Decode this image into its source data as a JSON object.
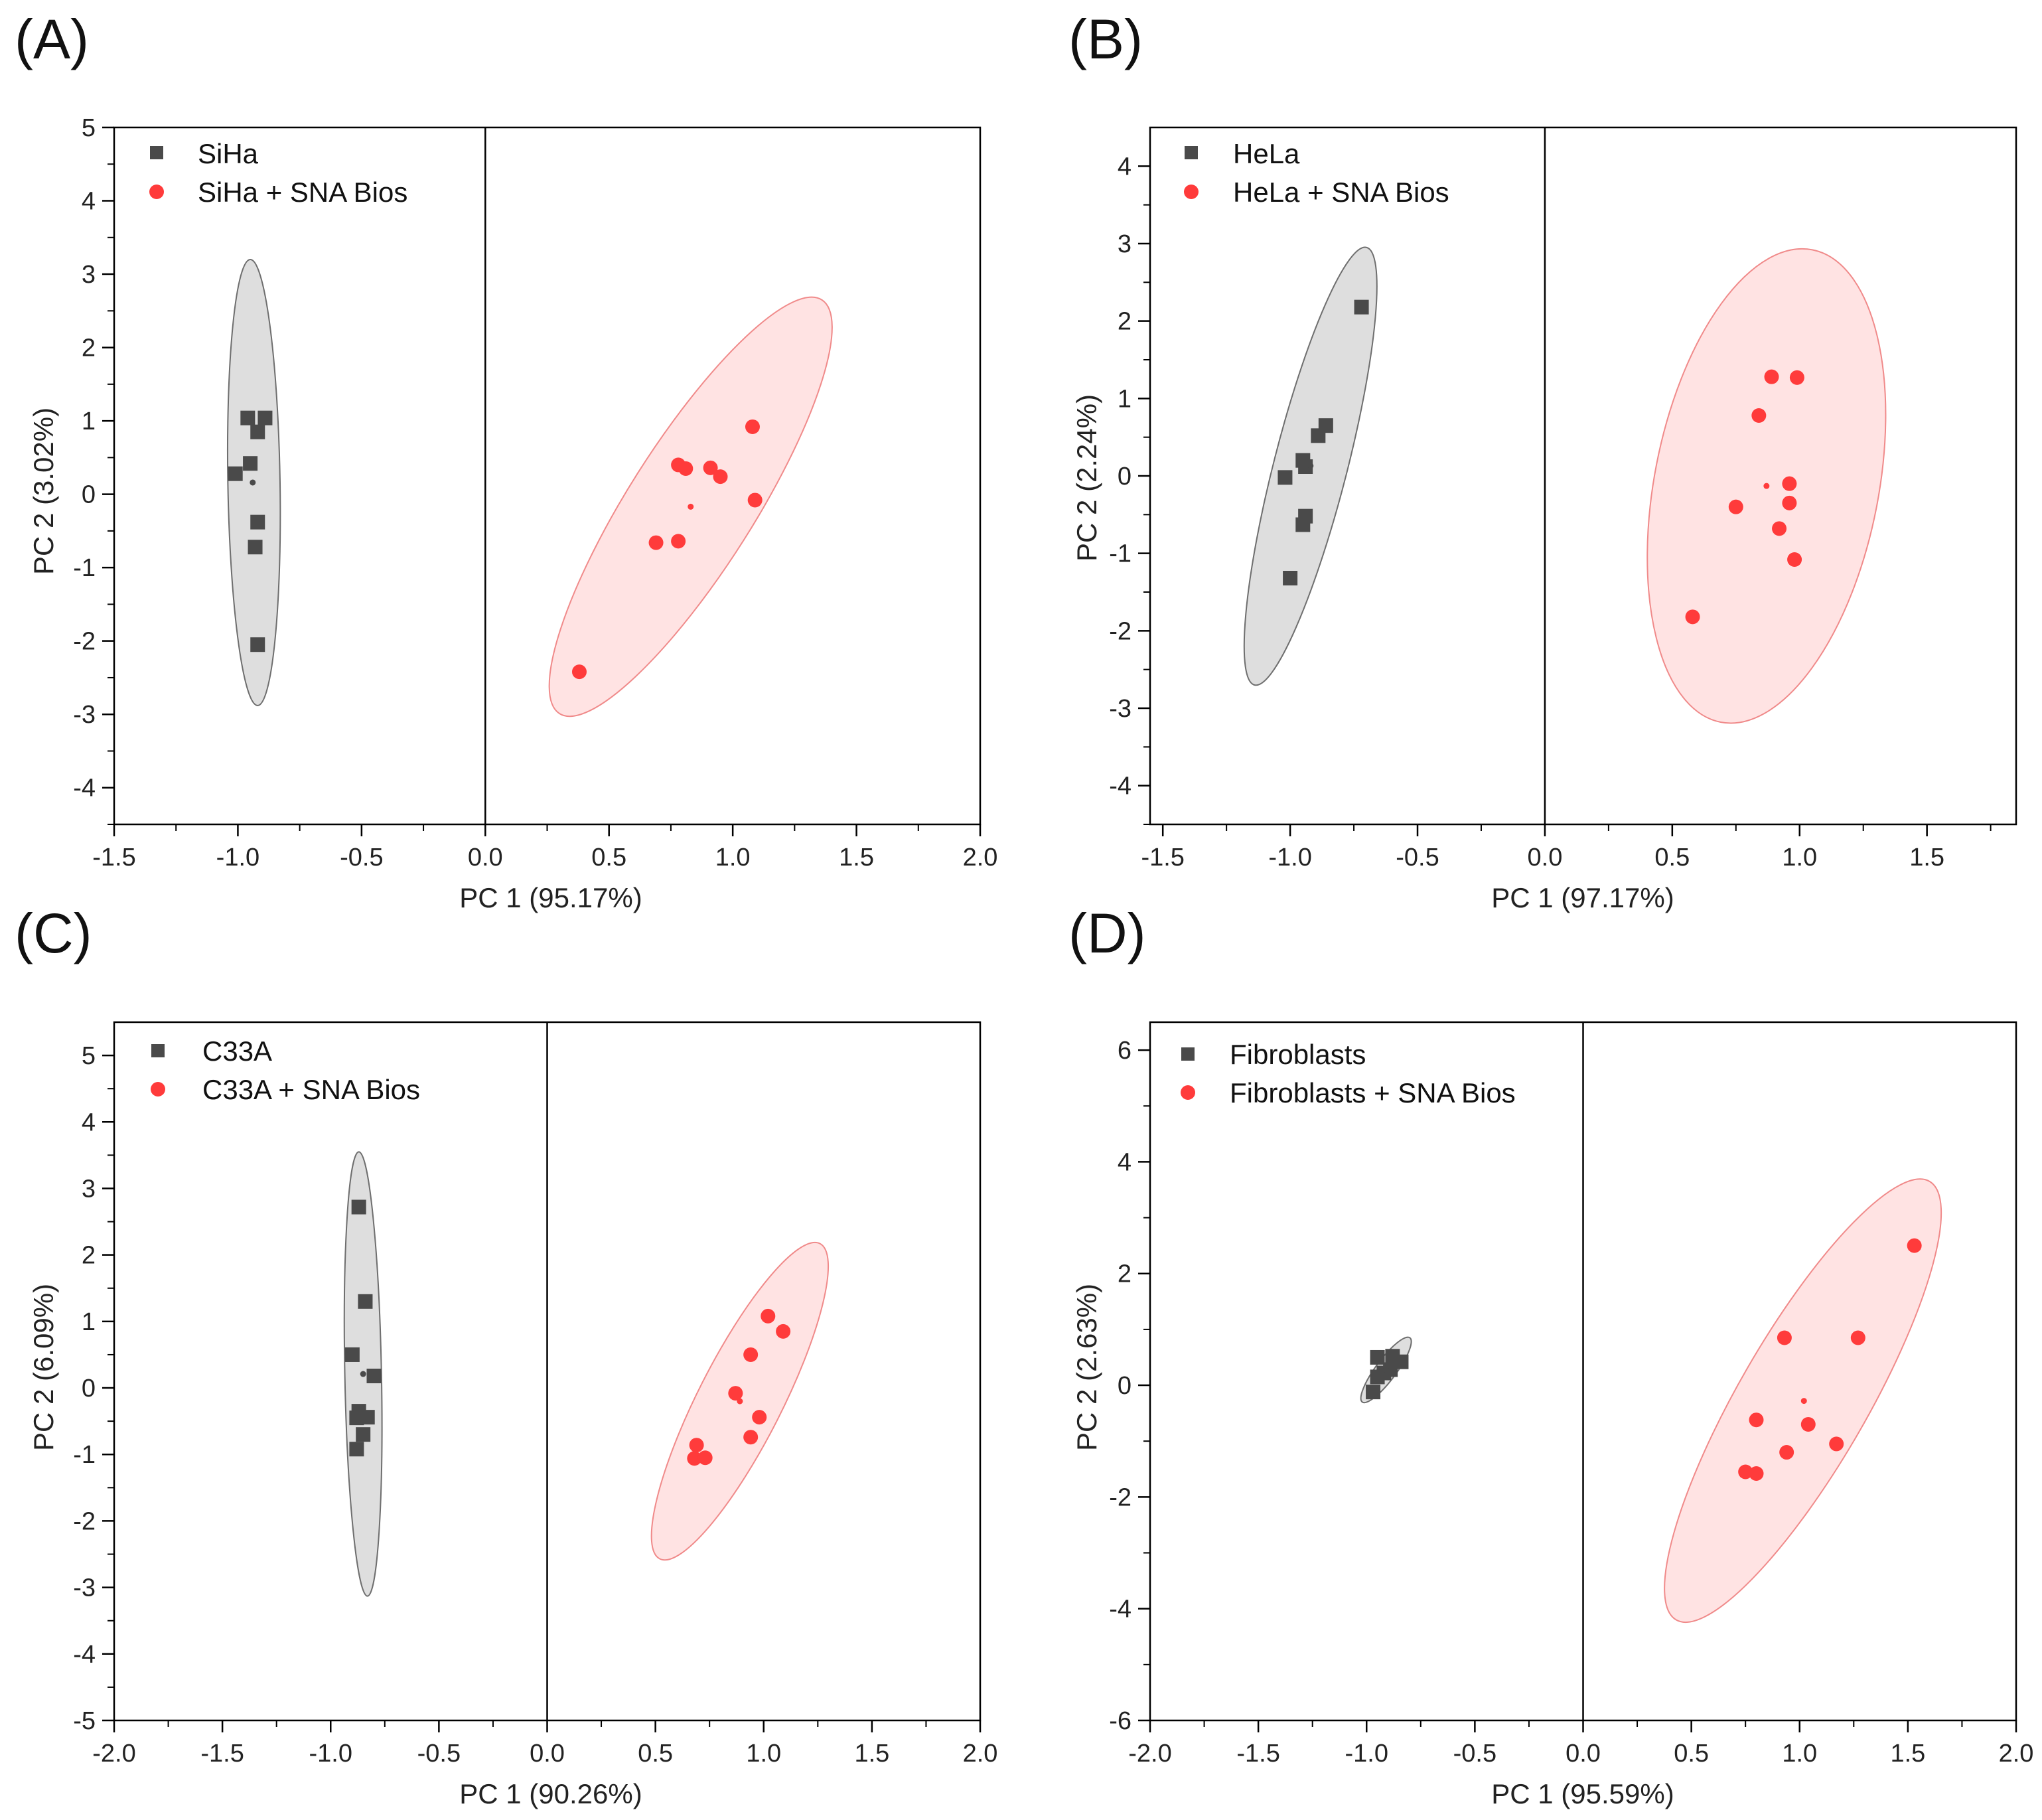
{
  "colors": {
    "control": "#4a4a4a",
    "treated": "#ff3b3b",
    "control_fill": "#d8d8d8",
    "treated_fill": "#ffdada",
    "axis": "#000000"
  },
  "chart_data": [
    {
      "type": "scatter",
      "panel_label": "(A)",
      "xlabel": "PC 1 (95.17%)",
      "ylabel": "PC 2 (3.02%)",
      "xlim": [
        -1.5,
        2.0
      ],
      "ylim": [
        -4.5,
        5.0
      ],
      "xticks": [
        -1.5,
        -1.0,
        -0.5,
        0.0,
        0.5,
        1.0,
        1.5,
        2.0
      ],
      "xtick_labels": [
        "-1.5",
        "-1.0",
        "-0.5",
        "0.0",
        "0.5",
        "1.0",
        "1.5",
        "2.0"
      ],
      "yticks": [
        -4,
        -3,
        -2,
        -1,
        0,
        1,
        2,
        3,
        4,
        5
      ],
      "ytick_labels": [
        "-4",
        "-3",
        "-2",
        "-1",
        "0",
        "1",
        "2",
        "3",
        "4",
        "5"
      ],
      "series": [
        {
          "name": "SiHa",
          "marker": "square",
          "points": [
            [
              -0.96,
              1.04
            ],
            [
              -0.89,
              1.04
            ],
            [
              -0.92,
              0.85
            ],
            [
              -1.01,
              0.28
            ],
            [
              -0.95,
              0.42
            ],
            [
              -0.92,
              -0.38
            ],
            [
              -0.93,
              -0.72
            ],
            [
              -0.92,
              -2.05
            ]
          ],
          "centroid": [
            -0.94,
            0.16
          ],
          "ellipse": {
            "center": [
              -0.93,
              0.17
            ],
            "points_on_boundary": [
              [
                -0.95,
                3.2
              ],
              [
                -0.92,
                -2.88
              ],
              [
                -1.0,
                0.5
              ],
              [
                -0.85,
                0.0
              ]
            ]
          }
        },
        {
          "name": "SiHa + SNA Bios",
          "marker": "circle",
          "points": [
            [
              1.08,
              0.92
            ],
            [
              0.78,
              0.4
            ],
            [
              0.81,
              0.35
            ],
            [
              0.91,
              0.36
            ],
            [
              0.95,
              0.24
            ],
            [
              1.09,
              -0.08
            ],
            [
              0.69,
              -0.66
            ],
            [
              0.78,
              -0.64
            ],
            [
              0.38,
              -2.42
            ]
          ],
          "centroid": [
            0.83,
            -0.17
          ],
          "ellipse": {
            "center": [
              0.83,
              -0.17
            ],
            "points_on_boundary": [
              [
                1.36,
                2.65
              ],
              [
                0.3,
                -2.99
              ],
              [
                0.72,
                0.6
              ],
              [
                0.94,
                -0.94
              ]
            ]
          }
        }
      ]
    },
    {
      "type": "scatter",
      "panel_label": "(B)",
      "xlabel": "PC 1 (97.17%)",
      "ylabel": "PC 2 (2.24%)",
      "xlim": [
        -1.55,
        1.85
      ],
      "ylim": [
        -4.5,
        4.5
      ],
      "xticks": [
        -1.5,
        -1.0,
        -0.5,
        0.0,
        0.5,
        1.0,
        1.5
      ],
      "xtick_labels": [
        "-1.5",
        "-1.0",
        "-0.5",
        "0.0",
        "0.5",
        "1.0",
        "1.5"
      ],
      "yticks": [
        -4,
        -3,
        -2,
        -1,
        0,
        1,
        2,
        3,
        4
      ],
      "ytick_labels": [
        "-4",
        "-3",
        "-2",
        "-1",
        "0",
        "1",
        "2",
        "3",
        "4"
      ],
      "series": [
        {
          "name": "HeLa",
          "marker": "square",
          "points": [
            [
              -0.72,
              2.18
            ],
            [
              -0.86,
              0.65
            ],
            [
              -0.89,
              0.52
            ],
            [
              -0.95,
              0.2
            ],
            [
              -0.94,
              0.12
            ],
            [
              -1.02,
              -0.02
            ],
            [
              -0.94,
              -0.52
            ],
            [
              -0.95,
              -0.63
            ],
            [
              -1.0,
              -1.32
            ]
          ],
          "centroid": [
            -0.92,
            0.13
          ],
          "ellipse": {
            "center": [
              -0.92,
              0.13
            ],
            "points_on_boundary": [
              [
                -0.7,
                2.95
              ],
              [
                -1.14,
                -2.7
              ],
              [
                -1.01,
                0.5
              ],
              [
                -0.83,
                -0.24
              ]
            ]
          }
        },
        {
          "name": "HeLa + SNA Bios",
          "marker": "circle",
          "points": [
            [
              0.89,
              1.28
            ],
            [
              0.99,
              1.27
            ],
            [
              0.84,
              0.78
            ],
            [
              0.96,
              -0.1
            ],
            [
              0.75,
              -0.4
            ],
            [
              0.96,
              -0.35
            ],
            [
              0.92,
              -0.68
            ],
            [
              0.98,
              -1.08
            ],
            [
              0.58,
              -1.82
            ]
          ],
          "centroid": [
            0.87,
            -0.13
          ],
          "ellipse": {
            "center": [
              0.87,
              -0.13
            ],
            "points_on_boundary": [
              [
                1.05,
                2.92
              ],
              [
                0.69,
                -3.18
              ],
              [
                0.48,
                -0.8
              ],
              [
                1.26,
                0.54
              ]
            ]
          }
        }
      ]
    },
    {
      "type": "scatter",
      "panel_label": "(C)",
      "xlabel": "PC 1 (90.26%)",
      "ylabel": "PC 2 (6.09%)",
      "xlim": [
        -2.0,
        2.0
      ],
      "ylim": [
        -5.0,
        5.5
      ],
      "xticks": [
        -2.0,
        -1.5,
        -1.0,
        -0.5,
        0.0,
        0.5,
        1.0,
        1.5,
        2.0
      ],
      "xtick_labels": [
        "-2.0",
        "-1.5",
        "-1.0",
        "-0.5",
        "0.0",
        "0.5",
        "1.0",
        "1.5",
        "2.0"
      ],
      "yticks": [
        -5,
        -4,
        -3,
        -2,
        -1,
        0,
        1,
        2,
        3,
        4,
        5
      ],
      "ytick_labels": [
        "-5",
        "-4",
        "-3",
        "-2",
        "-1",
        "0",
        "1",
        "2",
        "3",
        "4",
        "5"
      ],
      "series": [
        {
          "name": "C33A",
          "marker": "square",
          "points": [
            [
              -0.87,
              2.72
            ],
            [
              -0.84,
              1.3
            ],
            [
              -0.9,
              0.5
            ],
            [
              -0.8,
              0.18
            ],
            [
              -0.87,
              -0.35
            ],
            [
              -0.88,
              -0.45
            ],
            [
              -0.83,
              -0.44
            ],
            [
              -0.85,
              -0.7
            ],
            [
              -0.88,
              -0.92
            ]
          ],
          "centroid": [
            -0.85,
            0.21
          ],
          "ellipse": {
            "center": [
              -0.85,
              0.21
            ],
            "points_on_boundary": [
              [
                -0.87,
                3.55
              ],
              [
                -0.83,
                -3.13
              ],
              [
                -0.93,
                0.3
              ],
              [
                -0.77,
                0.12
              ]
            ]
          }
        },
        {
          "name": "C33A + SNA Bios",
          "marker": "circle",
          "points": [
            [
              1.02,
              1.08
            ],
            [
              1.09,
              0.85
            ],
            [
              0.94,
              0.5
            ],
            [
              0.87,
              -0.08
            ],
            [
              0.98,
              -0.44
            ],
            [
              0.94,
              -0.74
            ],
            [
              0.69,
              -0.86
            ],
            [
              0.68,
              -1.06
            ],
            [
              0.73,
              -1.05
            ]
          ],
          "centroid": [
            0.89,
            -0.2
          ],
          "ellipse": {
            "center": [
              0.89,
              -0.2
            ],
            "points_on_boundary": [
              [
                1.26,
                2.17
              ],
              [
                0.52,
                -2.57
              ],
              [
                0.7,
                -0.08
              ],
              [
                1.08,
                -0.32
              ]
            ]
          }
        }
      ]
    },
    {
      "type": "scatter",
      "panel_label": "(D)",
      "xlabel": "PC 1 (95.59%)",
      "ylabel": "PC 2 (2.63%)",
      "xlim": [
        -2.0,
        2.0
      ],
      "ylim": [
        -6.0,
        6.5
      ],
      "xticks": [
        -2.0,
        -1.5,
        -1.0,
        -0.5,
        0.0,
        0.5,
        1.0,
        1.5,
        2.0
      ],
      "xtick_labels": [
        "-2.0",
        "-1.5",
        "-1.0",
        "-0.5",
        "0.0",
        "0.5",
        "1.0",
        "1.5",
        "2.0"
      ],
      "yticks": [
        -6,
        -4,
        -2,
        0,
        2,
        4,
        6
      ],
      "ytick_labels": [
        "-6",
        "-4",
        "-2",
        "0",
        "2",
        "4",
        "6"
      ],
      "series": [
        {
          "name": "Fibroblasts",
          "marker": "square",
          "points": [
            [
              -0.95,
              0.5
            ],
            [
              -0.88,
              0.52
            ],
            [
              -0.84,
              0.42
            ],
            [
              -0.89,
              0.28
            ],
            [
              -0.92,
              0.22
            ],
            [
              -0.95,
              0.15
            ],
            [
              -0.97,
              -0.12
            ]
          ],
          "centroid": [
            -0.91,
            0.28
          ],
          "ellipse": {
            "center": [
              -0.91,
              0.28
            ],
            "points_on_boundary": [
              [
                -0.8,
                0.85
              ],
              [
                -1.02,
                -0.3
              ],
              [
                -0.95,
                0.38
              ],
              [
                -0.87,
                0.18
              ]
            ]
          }
        },
        {
          "name": "Fibroblasts + SNA Bios",
          "marker": "circle",
          "points": [
            [
              1.53,
              2.5
            ],
            [
              0.93,
              0.85
            ],
            [
              1.27,
              0.85
            ],
            [
              0.8,
              -0.62
            ],
            [
              1.04,
              -0.7
            ],
            [
              1.17,
              -1.05
            ],
            [
              0.94,
              -1.2
            ],
            [
              0.75,
              -1.55
            ],
            [
              0.8,
              -1.58
            ]
          ],
          "centroid": [
            1.02,
            -0.28
          ],
          "ellipse": {
            "center": [
              1.02,
              -0.28
            ],
            "points_on_boundary": [
              [
                1.6,
                3.65
              ],
              [
                0.43,
                -4.2
              ],
              [
                0.75,
                0.2
              ],
              [
                1.29,
                -0.76
              ]
            ]
          }
        }
      ]
    }
  ]
}
